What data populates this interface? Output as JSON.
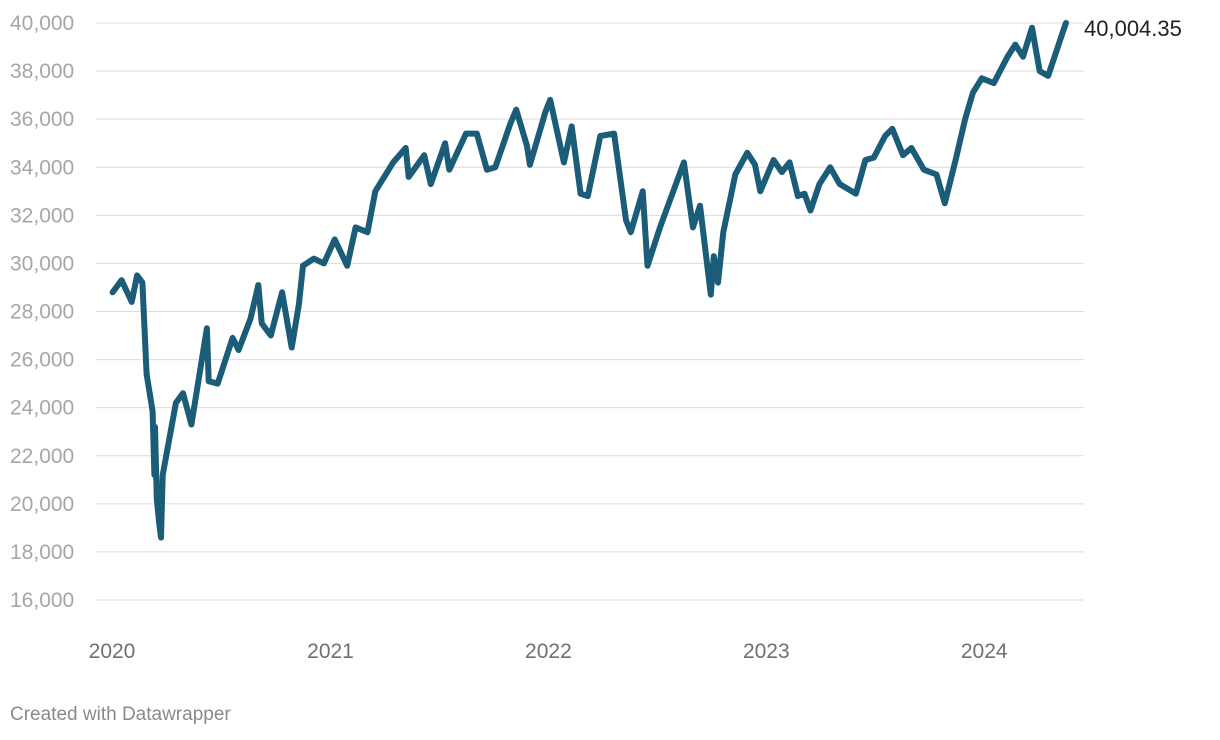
{
  "chart_data": {
    "type": "line",
    "title": "",
    "xlabel": "",
    "ylabel": "",
    "ylim": [
      16000,
      40000
    ],
    "xlim": [
      "2020-01-01",
      "2024-05-17"
    ],
    "yticks": [
      "16,000",
      "18,000",
      "20,000",
      "22,000",
      "24,000",
      "26,000",
      "28,000",
      "30,000",
      "32,000",
      "34,000",
      "36,000",
      "38,000",
      "40,000"
    ],
    "xticks": [
      "2020",
      "2021",
      "2022",
      "2023",
      "2024"
    ],
    "grid": "horizontal",
    "color": "#1b5c78",
    "end_label": "40,004.35",
    "series": [
      {
        "x": [
          "2020-01-02",
          "2020-01-17",
          "2020-02-03",
          "2020-02-12",
          "2020-02-21",
          "2020-02-28",
          "2020-03-09",
          "2020-03-12",
          "2020-03-13",
          "2020-03-16",
          "2020-03-20",
          "2020-03-23",
          "2020-03-26",
          "2020-04-06",
          "2020-04-17",
          "2020-04-29",
          "2020-05-13",
          "2020-06-08",
          "2020-06-11",
          "2020-06-26",
          "2020-07-21",
          "2020-07-31",
          "2020-08-20",
          "2020-09-02",
          "2020-09-08",
          "2020-09-23",
          "2020-10-12",
          "2020-10-28",
          "2020-11-09",
          "2020-11-16",
          "2020-12-04",
          "2020-12-21",
          "2021-01-08",
          "2021-01-29",
          "2021-02-12",
          "2021-03-04",
          "2021-03-17",
          "2021-04-16",
          "2021-05-07",
          "2021-05-12",
          "2021-06-07",
          "2021-06-18",
          "2021-07-12",
          "2021-07-19",
          "2021-08-16",
          "2021-09-03",
          "2021-09-20",
          "2021-10-04",
          "2021-10-29",
          "2021-11-08",
          "2021-11-26",
          "2021-12-01",
          "2021-12-27",
          "2022-01-04",
          "2022-01-27",
          "2022-02-09",
          "2022-02-24",
          "2022-03-08",
          "2022-03-29",
          "2022-04-21",
          "2022-05-11",
          "2022-05-19",
          "2022-06-08",
          "2022-06-16",
          "2022-07-07",
          "2022-08-16",
          "2022-08-31",
          "2022-09-12",
          "2022-09-30",
          "2022-10-05",
          "2022-10-12",
          "2022-10-21",
          "2022-11-10",
          "2022-11-30",
          "2022-12-13",
          "2022-12-22",
          "2023-01-13",
          "2023-01-27",
          "2023-02-09",
          "2023-02-23",
          "2023-03-06",
          "2023-03-16",
          "2023-03-31",
          "2023-04-18",
          "2023-05-04",
          "2023-05-31",
          "2023-06-16",
          "2023-06-30",
          "2023-07-19",
          "2023-07-31",
          "2023-08-18",
          "2023-09-01",
          "2023-09-22",
          "2023-10-13",
          "2023-10-27",
          "2023-11-14",
          "2023-11-30",
          "2023-12-13",
          "2023-12-28",
          "2024-01-17",
          "2024-02-09",
          "2024-02-22",
          "2024-03-06",
          "2024-03-21",
          "2024-04-03",
          "2024-04-17",
          "2024-05-02",
          "2024-05-10",
          "2024-05-17"
        ],
        "y": [
          28800,
          29300,
          28400,
          29500,
          29200,
          25400,
          23850,
          21200,
          23200,
          20200,
          19200,
          18600,
          21200,
          22700,
          24200,
          24600,
          23300,
          27300,
          25100,
          25000,
          26900,
          26400,
          27700,
          29100,
          27500,
          27000,
          28800,
          26500,
          28300,
          29900,
          30200,
          30000,
          31000,
          29900,
          31500,
          31300,
          33000,
          34200,
          34800,
          33600,
          34500,
          33300,
          35000,
          33900,
          35400,
          35400,
          33900,
          34000,
          35800,
          36400,
          34900,
          34100,
          36300,
          36800,
          34200,
          35700,
          32900,
          32800,
          35300,
          35400,
          31800,
          31300,
          33000,
          29900,
          31500,
          34200,
          31500,
          32400,
          28700,
          30300,
          29200,
          31300,
          33700,
          34600,
          34100,
          33000,
          34300,
          33800,
          34200,
          32800,
          32900,
          32200,
          33300,
          34000,
          33300,
          32900,
          34300,
          34400,
          35300,
          35600,
          34500,
          34800,
          33900,
          33700,
          32500,
          34300,
          36000,
          37100,
          37700,
          37500,
          38600,
          39100,
          38600,
          39800,
          38000,
          37800,
          38900,
          39500,
          40004.35
        ]
      }
    ]
  },
  "footer": {
    "credit": "Created with Datawrapper"
  }
}
